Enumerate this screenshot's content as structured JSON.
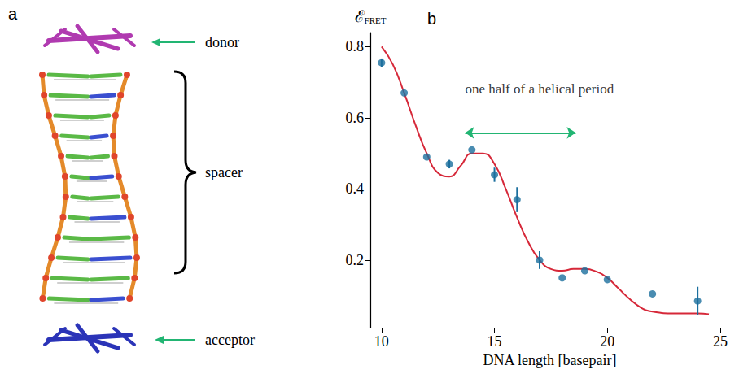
{
  "diagram": {
    "letter": "a",
    "labels": {
      "donor": "donor",
      "spacer": "spacer",
      "acceptor": "acceptor"
    }
  },
  "chart_data": {
    "type": "scatter",
    "title": "b",
    "xlabel": "DNA length [basepair]",
    "ylabel": {
      "main": "ℰ",
      "sub": "FRET"
    },
    "xlim": [
      9.5,
      25.4
    ],
    "xticks": [
      10,
      15,
      20,
      25
    ],
    "ylim": [
      0.01,
      0.84
    ],
    "yticks": [
      0.2,
      0.4,
      0.6,
      0.8
    ],
    "grid": false,
    "series": [
      {
        "type": "scatter",
        "color": "#1b6f9e",
        "marker": "circle",
        "x": [
          10,
          11,
          12,
          13,
          14,
          15,
          16,
          17,
          18,
          19,
          20,
          22,
          24
        ],
        "values": [
          0.755,
          0.67,
          0.49,
          0.47,
          0.51,
          0.44,
          0.37,
          0.2,
          0.15,
          0.17,
          0.145,
          0.105,
          0.085
        ],
        "errors": [
          0.012,
          null,
          null,
          0.012,
          null,
          0.02,
          0.035,
          0.025,
          null,
          null,
          null,
          null,
          0.04
        ]
      },
      {
        "type": "line",
        "color": "#d62839",
        "line_style": "solid",
        "x": [
          10,
          10.5,
          11,
          11.5,
          12,
          12.5,
          13,
          13.5,
          14,
          14.5,
          15,
          15.5,
          16,
          16.5,
          17,
          17.5,
          18,
          18.5,
          19,
          19.5,
          20,
          20.5,
          21,
          21.5,
          22,
          23,
          24,
          24.5
        ],
        "values": [
          0.8,
          0.75,
          0.67,
          0.58,
          0.5,
          0.445,
          0.435,
          0.465,
          0.5,
          0.5,
          0.47,
          0.4,
          0.32,
          0.25,
          0.2,
          0.175,
          0.17,
          0.175,
          0.175,
          0.168,
          0.15,
          0.12,
          0.09,
          0.066,
          0.055,
          0.05,
          0.05,
          0.048
        ]
      }
    ],
    "annotations": [
      {
        "text": "one half of a helical period",
        "x": 13.7,
        "y": 0.68,
        "arrow": {
          "x": [
            13.7,
            18.6
          ],
          "y": 0.558,
          "color": "#22b573"
        }
      }
    ]
  }
}
